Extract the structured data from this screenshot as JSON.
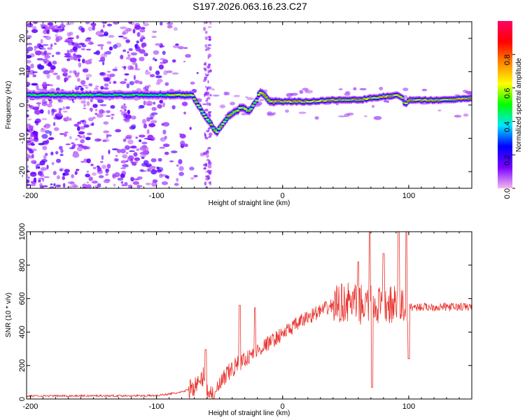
{
  "title": "S197.2026.063.16.23.C27",
  "chart_data": [
    {
      "type": "heatmap",
      "name": "spectrogram",
      "xlabel": "Height of straight line (km)",
      "ylabel": "Frequency (Hz)",
      "xlim": [
        -203,
        150
      ],
      "ylim": [
        -25,
        25
      ],
      "xticks": [
        -200,
        -100,
        0,
        100
      ],
      "yticks": [
        -20,
        -10,
        0,
        10,
        20
      ],
      "ridge": {
        "x": [
          -205,
          -150,
          -100,
          -85,
          -78,
          -72,
          -67,
          -62,
          -58,
          -55,
          -52,
          -49,
          -46,
          -43,
          -40,
          -37,
          -34,
          -30,
          -27,
          -24,
          -21,
          -18,
          -15,
          -10,
          -5,
          0,
          20,
          40,
          60,
          80,
          90,
          95,
          97,
          100,
          120,
          150
        ],
        "freq": [
          3,
          3,
          3,
          3,
          3,
          3,
          0,
          -3,
          -5,
          -7,
          -8,
          -6.5,
          -5,
          -3.5,
          -2.5,
          -2,
          -1,
          -1,
          -2,
          -0.5,
          1,
          4,
          3,
          1,
          1,
          1,
          1,
          1.5,
          1.5,
          2.5,
          3,
          2,
          0,
          1.5,
          1.5,
          2
        ]
      }
    },
    {
      "type": "colorbar",
      "name": "normalized-amplitude-scale",
      "label": "Normalized spectral amplitude",
      "range": [
        0,
        1
      ],
      "ticks": [
        "0.0",
        "0.2",
        "0.4",
        "0.6",
        "0.8"
      ],
      "colors": [
        "#f4b8f0",
        "#7a00ff",
        "#0000ff",
        "#00e5ff",
        "#00ff00",
        "#ffff00",
        "#ff8800",
        "#ff0000",
        "#ff0066"
      ]
    },
    {
      "type": "line",
      "name": "snr",
      "series": [
        {
          "name": "SNR",
          "color": "#e8322c"
        }
      ],
      "xlabel": "Height of straight line (km)",
      "ylabel": "SNR (10 * v/v)",
      "xlim": [
        -203,
        150
      ],
      "ylim": [
        0,
        1000
      ],
      "xticks": [
        -200,
        -100,
        0,
        100
      ],
      "yticks": [
        0,
        200,
        400,
        600,
        800,
        1000
      ],
      "envelope": {
        "x": [
          -205,
          -100,
          -80,
          -66,
          -62,
          -60,
          -56,
          -52,
          -40,
          -20,
          0,
          20,
          40,
          50,
          65,
          80,
          95,
          100,
          120,
          150
        ],
        "y": [
          18,
          20,
          40,
          90,
          150,
          60,
          30,
          60,
          180,
          290,
          390,
          490,
          560,
          580,
          560,
          560,
          560,
          550,
          550,
          550
        ]
      },
      "spikes": [
        {
          "x": -61,
          "y": 295
        },
        {
          "x": -53,
          "y": 45
        },
        {
          "x": -34,
          "y": 560
        },
        {
          "x": -22,
          "y": 545
        },
        {
          "x": 60,
          "y": 820
        },
        {
          "x": 69,
          "y": 1000
        },
        {
          "x": 71,
          "y": 70
        },
        {
          "x": 80,
          "y": 870
        },
        {
          "x": 92,
          "y": 1000
        },
        {
          "x": 98,
          "y": 1000
        },
        {
          "x": 100,
          "y": 240
        }
      ]
    }
  ]
}
